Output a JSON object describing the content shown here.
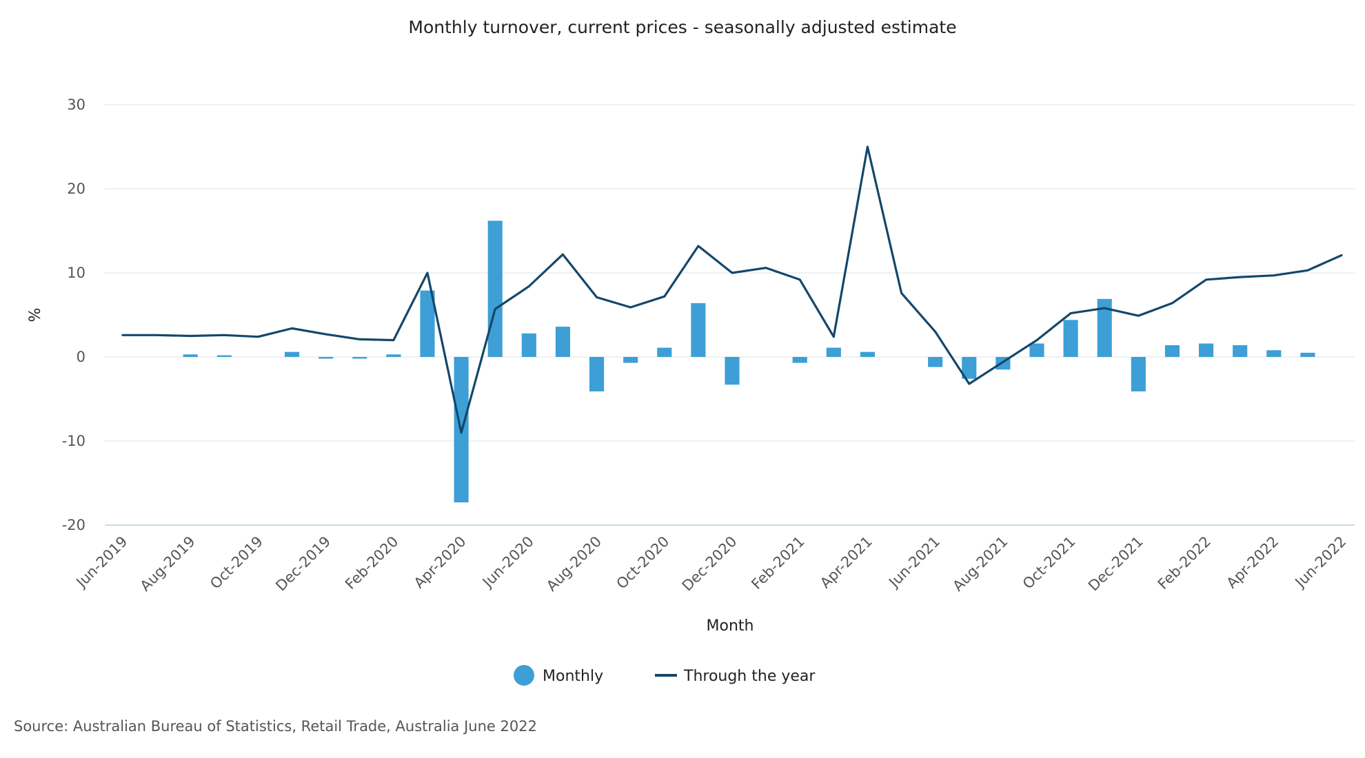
{
  "chart_data": {
    "type": "bar",
    "title": "Monthly turnover, current prices - seasonally adjusted estimate",
    "xlabel": "Month",
    "ylabel": "%",
    "ylim": [
      -20,
      30
    ],
    "yticks": [
      30,
      20,
      10,
      0,
      -10,
      -20
    ],
    "grid": true,
    "legend_position": "bottom",
    "categories": [
      "Jun-2019",
      "Jul-2019",
      "Aug-2019",
      "Sep-2019",
      "Oct-2019",
      "Nov-2019",
      "Dec-2019",
      "Jan-2020",
      "Feb-2020",
      "Mar-2020",
      "Apr-2020",
      "May-2020",
      "Jun-2020",
      "Jul-2020",
      "Aug-2020",
      "Sep-2020",
      "Oct-2020",
      "Nov-2020",
      "Dec-2020",
      "Jan-2021",
      "Feb-2021",
      "Mar-2021",
      "Apr-2021",
      "May-2021",
      "Jun-2021",
      "Jul-2021",
      "Aug-2021",
      "Sep-2021",
      "Oct-2021",
      "Nov-2021",
      "Dec-2021",
      "Jan-2022",
      "Feb-2022",
      "Mar-2022",
      "Apr-2022",
      "May-2022",
      "Jun-2022"
    ],
    "tick_labels": [
      "Jun-2019",
      "Aug-2019",
      "Oct-2019",
      "Dec-2019",
      "Feb-2020",
      "Apr-2020",
      "Jun-2020",
      "Aug-2020",
      "Oct-2020",
      "Dec-2020",
      "Feb-2021",
      "Apr-2021",
      "Jun-2021",
      "Aug-2021",
      "Oct-2021",
      "Dec-2021",
      "Feb-2022",
      "Apr-2022",
      "Jun-2022"
    ],
    "series": [
      {
        "name": "Monthly",
        "type": "bar",
        "color": "#3d9fd6",
        "values": [
          0.0,
          0.0,
          0.3,
          0.2,
          0.0,
          0.6,
          -0.2,
          -0.2,
          0.3,
          7.9,
          -17.3,
          16.2,
          2.8,
          3.6,
          -4.1,
          -0.7,
          1.1,
          6.4,
          -3.3,
          0.0,
          -0.7,
          1.1,
          0.6,
          0.0,
          -1.2,
          -2.6,
          -1.5,
          1.6,
          4.4,
          6.9,
          -4.1,
          1.4,
          1.6,
          1.4,
          0.8,
          0.5,
          0.0
        ]
      },
      {
        "name": "Through the year",
        "type": "line",
        "color": "#14476b",
        "values": [
          2.6,
          2.6,
          2.5,
          2.6,
          2.4,
          3.4,
          2.7,
          2.1,
          2.0,
          10.0,
          -9.0,
          5.7,
          8.4,
          12.2,
          7.1,
          5.9,
          7.2,
          13.2,
          10.0,
          10.6,
          9.2,
          2.4,
          25.0,
          7.6,
          3.0,
          -3.2,
          -0.6,
          2.0,
          5.2,
          5.8,
          4.9,
          6.4,
          9.2,
          9.5,
          9.7,
          10.3,
          12.1
        ]
      }
    ]
  },
  "source": "Source: Australian Bureau of Statistics, Retail Trade, Australia June 2022"
}
